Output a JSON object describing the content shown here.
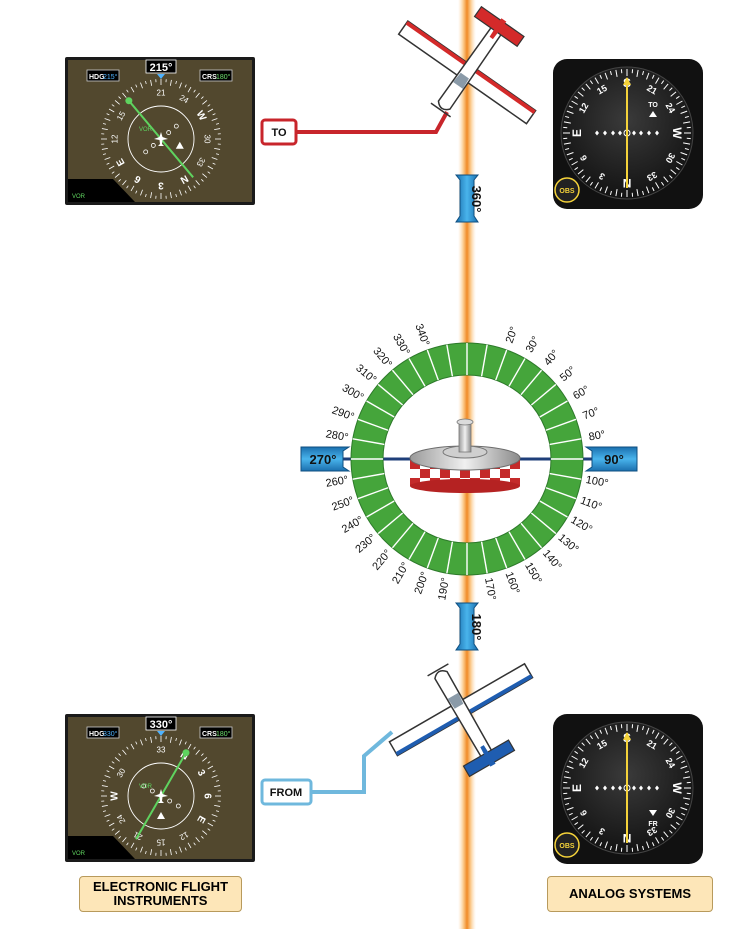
{
  "radial_bearing_labels": {
    "north": "360°",
    "south": "180°",
    "east": "90°",
    "west": "270°"
  },
  "compass_rose_degrees": [
    "20°",
    "30°",
    "40°",
    "50°",
    "60°",
    "70°",
    "80°",
    "100°",
    "110°",
    "120°",
    "130°",
    "140°",
    "150°",
    "160°",
    "170°",
    "190°",
    "200°",
    "210°",
    "220°",
    "230°",
    "240°",
    "250°",
    "260°",
    "280°",
    "290°",
    "300°",
    "310°",
    "320°",
    "330°",
    "340°"
  ],
  "to_callout": "TO",
  "from_callout": "FROM",
  "efis_top": {
    "heading": "215°",
    "hdg_label": "HDG",
    "hdg_value": "215°",
    "crs_label": "CRS",
    "crs_value": "180°",
    "nav_source": "VOR",
    "cdi_label": "VOR",
    "card_marks": [
      "21",
      "24",
      "W",
      "30",
      "33",
      "N",
      "3",
      "6",
      "E",
      "12",
      "15"
    ]
  },
  "efis_bottom": {
    "heading": "330°",
    "hdg_label": "HDG",
    "hdg_value": "330°",
    "crs_label": "CRS",
    "crs_value": "180°",
    "nav_source": "VOR",
    "cdi_label": "VOR",
    "card_marks": [
      "33",
      "N",
      "3",
      "6",
      "E",
      "12",
      "15",
      "21",
      "24",
      "W",
      "30"
    ]
  },
  "vor_top": {
    "top_mark": "S",
    "bottom_mark": "N",
    "left_mark": "E",
    "right_mark": "W",
    "marks": [
      "21",
      "24",
      "30",
      "33",
      "3",
      "6",
      "12",
      "15"
    ],
    "flag": "TO",
    "knob": "OBS"
  },
  "vor_bottom": {
    "top_mark": "S",
    "bottom_mark": "N",
    "left_mark": "E",
    "right_mark": "W",
    "marks": [
      "21",
      "24",
      "30",
      "33",
      "3",
      "6",
      "12",
      "15"
    ],
    "flag": "FR",
    "knob": "OBS"
  },
  "footer": {
    "left": "ELECTRONIC FLIGHT\nINSTRUMENTS",
    "right": "ANALOG SYSTEMS"
  },
  "colors": {
    "radial_line": "#f29a3a",
    "compass_ring": "#45a53b",
    "bearing_box": "#2a95d4",
    "to_red": "#c8252b",
    "from_blue": "#6fb8dd",
    "efis_bg": "#52482e",
    "footer_bg": "#fde6b8",
    "plane_red": "#d42a2a",
    "plane_blue": "#1f5db0"
  }
}
